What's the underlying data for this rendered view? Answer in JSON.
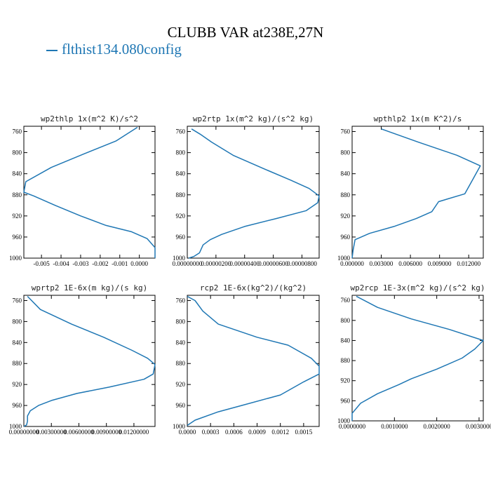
{
  "figure": {
    "title": "CLUBB VAR at238E,27N",
    "legend": [
      {
        "label": "flthist134.080config",
        "color": "#1f77b4"
      }
    ]
  },
  "chart_data": [
    {
      "type": "line",
      "title": "wp2thlp  1x(m^2 K)/s^2",
      "ylim": [
        1000,
        750
      ],
      "yticks": [
        760,
        800,
        840,
        880,
        920,
        960,
        1000
      ],
      "xlim": [
        -0.0059,
        0.0008
      ],
      "xticks": [
        -0.005,
        -0.004,
        -0.003,
        -0.002,
        -0.001,
        0.0
      ],
      "xtick_labels": [
        "-0.005",
        "-0.004",
        "-0.003",
        "-0.002",
        "-0.001",
        "0.0000"
      ],
      "series": [
        {
          "x": [
            -0.0001,
            -0.0012,
            -0.0028,
            -0.0045,
            -0.0058,
            -0.0059,
            -0.0054,
            -0.0043,
            -0.003,
            -0.0017,
            -0.0004,
            0.0004,
            0.0008,
            0.0008
          ],
          "y": [
            752,
            778,
            802,
            828,
            855,
            875,
            882,
            900,
            920,
            938,
            950,
            963,
            980,
            1000
          ]
        }
      ]
    },
    {
      "type": "line",
      "title": "wp2rtp  1x(m^2 kg)/(s^2 kg)",
      "ylim": [
        1000,
        750
      ],
      "yticks": [
        760,
        800,
        840,
        880,
        920,
        960,
        1000
      ],
      "xlim": [
        0.0,
        9.2e-06
      ],
      "xticks": [
        0.0,
        2e-06,
        4e-06,
        6e-06,
        8e-06
      ],
      "xtick_labels": [
        "0.00000000",
        "0.00000200",
        "0.00000400",
        "0.00000600",
        "0.00000800"
      ],
      "series": [
        {
          "x": [
            3e-07,
            9e-07,
            1.7e-06,
            3.2e-06,
            5.3e-06,
            7.2e-06,
            8.5e-06,
            9.2e-06,
            9.1e-06,
            8.3e-06,
            6.2e-06,
            4e-06,
            2.4e-06,
            1.6e-06,
            1.1e-06,
            8.5e-07,
            4.5e-07,
            1e-07
          ],
          "y": [
            755,
            765,
            780,
            805,
            830,
            852,
            868,
            882,
            895,
            910,
            925,
            940,
            955,
            965,
            975,
            990,
            997,
            1000
          ]
        }
      ]
    },
    {
      "type": "line",
      "title": "wpthlp2  1x(m K^2)/s",
      "ylim": [
        1000,
        750
      ],
      "yticks": [
        760,
        800,
        840,
        880,
        920,
        960,
        1000
      ],
      "xlim": [
        0.0,
        0.0135
      ],
      "xticks": [
        0.0,
        0.003,
        0.006,
        0.009,
        0.012
      ],
      "xtick_labels": [
        "0.000000",
        "0.003000",
        "0.006000",
        "0.009000",
        "0.012000"
      ],
      "series": [
        {
          "x": [
            0.003,
            0.0068,
            0.0108,
            0.0132,
            0.0126,
            0.0116,
            0.0089,
            0.0082,
            0.0066,
            0.0043,
            0.0018,
            0.0003,
            0.0001,
            0.0
          ],
          "y": [
            755,
            780,
            805,
            825,
            845,
            878,
            893,
            912,
            925,
            940,
            953,
            965,
            985,
            1000
          ]
        }
      ]
    },
    {
      "type": "line",
      "title": "wprtp2  1E-6x(m kg)/(s kg)",
      "ylim": [
        1000,
        750
      ],
      "yticks": [
        760,
        800,
        840,
        880,
        920,
        960,
        1000
      ],
      "xlim": [
        0.0,
        0.0143
      ],
      "xticks": [
        0.0,
        0.003,
        0.006,
        0.009,
        0.012
      ],
      "xtick_labels": [
        "0.00000000",
        "0.00300000",
        "0.00600000",
        "0.00900000",
        "0.01200000"
      ],
      "series": [
        {
          "x": [
            0.0004,
            0.0018,
            0.0052,
            0.0087,
            0.0118,
            0.0135,
            0.0143,
            0.0141,
            0.0131,
            0.0093,
            0.0058,
            0.0031,
            0.0016,
            0.0007,
            0.0004,
            0.0004,
            0.0003,
            0.0
          ],
          "y": [
            752,
            777,
            805,
            830,
            855,
            870,
            882,
            900,
            910,
            925,
            937,
            950,
            960,
            970,
            980,
            990,
            997,
            1000
          ]
        }
      ]
    },
    {
      "type": "line",
      "title": "rcp2  1E-6x(kg^2)/(kg^2)",
      "ylim": [
        1000,
        750
      ],
      "yticks": [
        760,
        800,
        840,
        880,
        920,
        960,
        1000
      ],
      "xlim": [
        0.0,
        0.0017
      ],
      "xticks": [
        0.0,
        0.0003,
        0.0006,
        0.0009,
        0.0012,
        0.0015
      ],
      "xtick_labels": [
        "0.0000",
        "0.0003",
        "0.0006",
        "0.0009",
        "0.0012",
        "0.0015"
      ],
      "series": [
        {
          "x": [
            0.0,
            0.0001,
            0.0002,
            0.0004,
            0.0009,
            0.0013,
            0.0016,
            0.0017,
            0.0017,
            0.0015,
            0.0012,
            0.0007,
            0.0004,
            0.0001,
            0.0
          ],
          "y": [
            752,
            760,
            780,
            805,
            830,
            845,
            870,
            885,
            900,
            915,
            940,
            960,
            972,
            988,
            998
          ]
        }
      ]
    },
    {
      "type": "line",
      "title": "wp2rcp  1E-3x(m^2 kg)/(s^2 kg)",
      "ylim": [
        1000,
        750
      ],
      "yticks": [
        760,
        800,
        840,
        880,
        920,
        960,
        1000
      ],
      "xlim": [
        0.0,
        0.0031
      ],
      "xticks": [
        0.0,
        0.001,
        0.002,
        0.003
      ],
      "xtick_labels": [
        "0.0000000",
        "0.0010000",
        "0.0020000",
        "0.0030000"
      ],
      "series": [
        {
          "x": [
            0.0001,
            0.0006,
            0.0014,
            0.0023,
            0.0031,
            0.0029,
            0.0026,
            0.002,
            0.0014,
            0.0011,
            0.0006,
            0.0002,
            0.0,
            0.0
          ],
          "y": [
            752,
            774,
            797,
            818,
            840,
            857,
            875,
            897,
            916,
            928,
            946,
            965,
            985,
            1000
          ]
        }
      ]
    }
  ]
}
